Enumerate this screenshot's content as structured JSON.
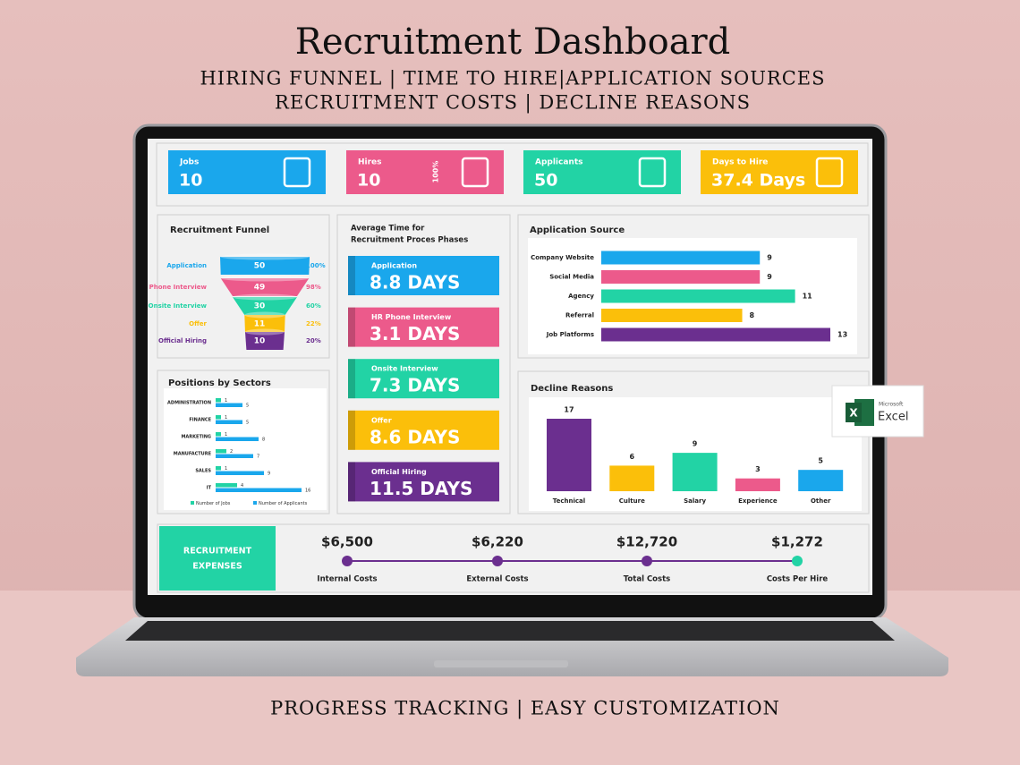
{
  "header": {
    "title": "Recruitment Dashboard",
    "subtitle_lines": [
      "HIRING FUNNEL | TIME TO HIRE|APPLICATION SOURCES",
      "RECRUITMENT COSTS | DECLINE REASONS"
    ]
  },
  "kpis": [
    {
      "label": "Jobs",
      "value": "10",
      "color": "#1aa7ec"
    },
    {
      "label": "Hires",
      "value": "10",
      "color": "#ec5a8b",
      "badge": "100%"
    },
    {
      "label": "Applicants",
      "value": "50",
      "color": "#22d3a5"
    },
    {
      "label": "Days to Hire",
      "value": "37.4 Days",
      "color": "#fbbf0a"
    }
  ],
  "chart_data": [
    {
      "type": "funnel",
      "title": "Recruitment Funnel",
      "categories": [
        "Application",
        "Phone Interview",
        "Onsite Interview",
        "Offer",
        "Official Hiring"
      ],
      "values": [
        50,
        49,
        30,
        11,
        10
      ],
      "percent_labels": [
        "100%",
        "98%",
        "60%",
        "22%",
        "20%"
      ],
      "colors": [
        "#1aa7ec",
        "#ec5a8b",
        "#22d3a5",
        "#fbbf0a",
        "#6b2f8f"
      ]
    },
    {
      "type": "grouped-hbar",
      "title": "Positions by Sectors",
      "categories": [
        "ADMINISTRATION",
        "FINANCE",
        "MARKETING",
        "MANUFACTURE",
        "SALES",
        "IT"
      ],
      "series": [
        {
          "name": "Number of Jobs",
          "color": "#22d3a5",
          "values": [
            1,
            1,
            1,
            2,
            1,
            4
          ]
        },
        {
          "name": "Number of Applicants",
          "color": "#1aa7ec",
          "values": [
            5,
            5,
            8,
            7,
            9,
            16
          ]
        }
      ]
    },
    {
      "type": "hbar",
      "title": "Application Source",
      "categories": [
        "Company Website",
        "Social Media",
        "Agency",
        "Referral",
        "Job Platforms"
      ],
      "values": [
        9,
        9,
        11,
        8,
        13
      ],
      "colors": [
        "#1aa7ec",
        "#ec5a8b",
        "#22d3a5",
        "#fbbf0a",
        "#6b2f8f"
      ]
    },
    {
      "type": "bar",
      "title": "Decline Reasons",
      "categories": [
        "Technical",
        "Culture",
        "Salary",
        "Experience",
        "Other"
      ],
      "values": [
        17,
        6,
        9,
        3,
        5
      ],
      "colors": [
        "#6b2f8f",
        "#fbbf0a",
        "#22d3a5",
        "#ec5a8b",
        "#1aa7ec"
      ]
    }
  ],
  "phases": {
    "title_lines": [
      "Average Time for",
      "Recruitment Proces Phases"
    ],
    "items": [
      {
        "name": "Application",
        "value": "8.8 DAYS",
        "color": "#1aa7ec"
      },
      {
        "name": "HR Phone Interview",
        "value": "3.1 DAYS",
        "color": "#ec5a8b"
      },
      {
        "name": "Onsite Interview",
        "value": "7.3 DAYS",
        "color": "#22d3a5"
      },
      {
        "name": "Offer",
        "value": "8.6 DAYS",
        "color": "#fbbf0a"
      },
      {
        "name": "Official Hiring",
        "value": "11.5 DAYS",
        "color": "#6b2f8f"
      }
    ]
  },
  "expenses": {
    "title_lines": [
      "RECRUITMENT",
      "EXPENSES"
    ],
    "items": [
      {
        "value": "$6,500",
        "label": "Internal Costs"
      },
      {
        "value": "$6,220",
        "label": "External Costs"
      },
      {
        "value": "$12,720",
        "label": "Total Costs"
      },
      {
        "value": "$1,272",
        "label": "Costs Per Hire"
      }
    ]
  },
  "logo": {
    "brand": "Microsoft",
    "product": "Excel"
  },
  "footer": "PROGRESS TRACKING | EASY CUSTOMIZATION"
}
